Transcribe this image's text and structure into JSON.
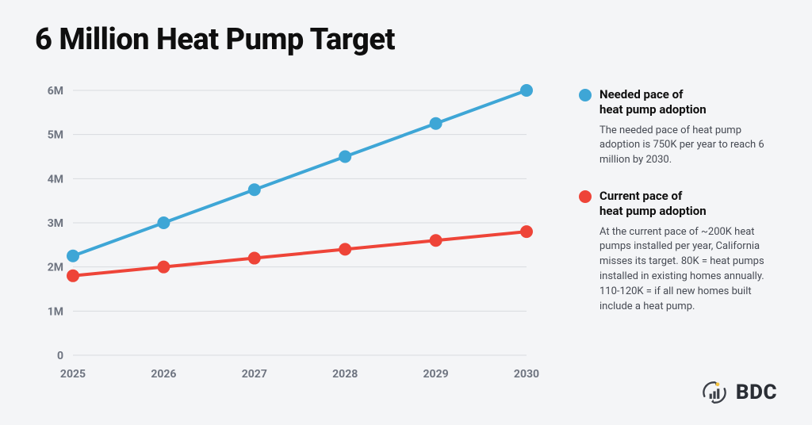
{
  "title": "6 Million Heat Pump Target",
  "chart": {
    "type": "line",
    "background_color": "#f4f5f7",
    "grid_color": "#d8dadf",
    "axis_label_color": "#6e7480",
    "axis_label_fontsize": 14,
    "axis_label_fontweight": 700,
    "xlim": [
      2025,
      2030
    ],
    "ylim": [
      0,
      6
    ],
    "x_ticks": [
      2025,
      2026,
      2027,
      2028,
      2029,
      2030
    ],
    "x_tick_labels": [
      "2025",
      "2026",
      "2027",
      "2028",
      "2029",
      "2030"
    ],
    "y_ticks": [
      0,
      1,
      2,
      3,
      4,
      5,
      6
    ],
    "y_tick_labels": [
      "0",
      "1M",
      "2M",
      "3M",
      "4M",
      "5M",
      "6M"
    ],
    "marker_radius": 8,
    "line_width": 4,
    "series": [
      {
        "id": "needed",
        "color": "#3ea6d6",
        "x": [
          2025,
          2026,
          2027,
          2028,
          2029,
          2030
        ],
        "y": [
          2.25,
          3.0,
          3.75,
          4.5,
          5.25,
          6.0
        ]
      },
      {
        "id": "current",
        "color": "#ee4438",
        "x": [
          2025,
          2026,
          2027,
          2028,
          2029,
          2030
        ],
        "y": [
          1.8,
          2.0,
          2.2,
          2.4,
          2.6,
          2.8
        ]
      }
    ]
  },
  "legend": {
    "items": [
      {
        "color": "#3ea6d6",
        "title": "Needed pace of\nheat pump adoption",
        "body": "The needed pace of heat pump adoption is 750K per year to reach 6 million by 2030."
      },
      {
        "color": "#ee4438",
        "title": "Current pace of\nheat pump adoption",
        "body": "At the current pace of ~200K heat pumps installed per year, California misses its target. 80K = heat pumps installed in existing homes annually. 110-120K = if all new homes built include a heat pump."
      }
    ]
  },
  "logo": {
    "text": "BDC",
    "icon_primary": "#3b3f47",
    "icon_accent": "#f6c440"
  }
}
